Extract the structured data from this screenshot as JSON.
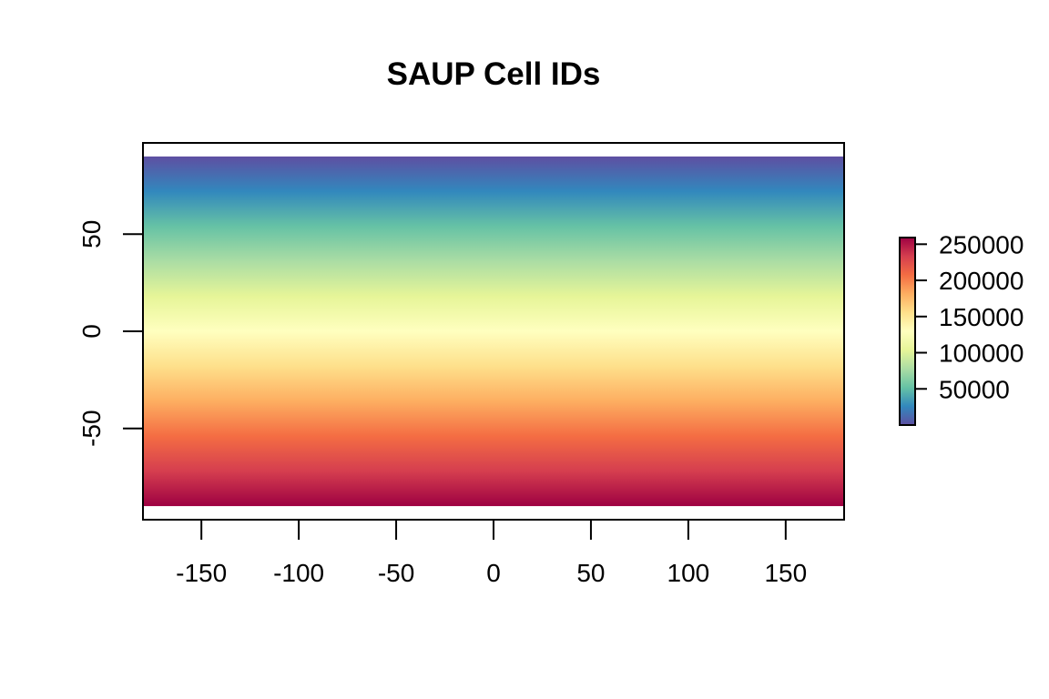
{
  "chart_data": {
    "type": "heatmap",
    "title": "SAUP Cell IDs",
    "xlabel": "",
    "ylabel": "",
    "xlim": [
      -180,
      180
    ],
    "ylim": [
      -97,
      97
    ],
    "data_extent": {
      "x": [
        -180,
        180
      ],
      "y": [
        -90,
        90
      ]
    },
    "x_ticks": [
      -150,
      -100,
      -50,
      0,
      50,
      100,
      150
    ],
    "x_tick_labels": [
      "-150",
      "-100",
      "-50",
      "0",
      "50",
      "100",
      "150"
    ],
    "y_ticks": [
      -50,
      0,
      50
    ],
    "y_tick_labels": [
      "-50",
      "0",
      "50"
    ],
    "color_gradient": "north-to-south",
    "palette": [
      "#5E4FA2",
      "#3288BD",
      "#66C2A5",
      "#ABDDA4",
      "#E6F598",
      "#FFFFBF",
      "#FEE08B",
      "#FDAE61",
      "#F46D43",
      "#D53E4F",
      "#9E0142"
    ],
    "legend": {
      "placement": "right",
      "range": [
        1,
        259200
      ],
      "ticks": [
        50000,
        100000,
        150000,
        200000,
        250000
      ],
      "tick_labels": [
        "50000",
        "100000",
        "150000",
        "200000",
        "250000"
      ]
    },
    "grid": false
  }
}
